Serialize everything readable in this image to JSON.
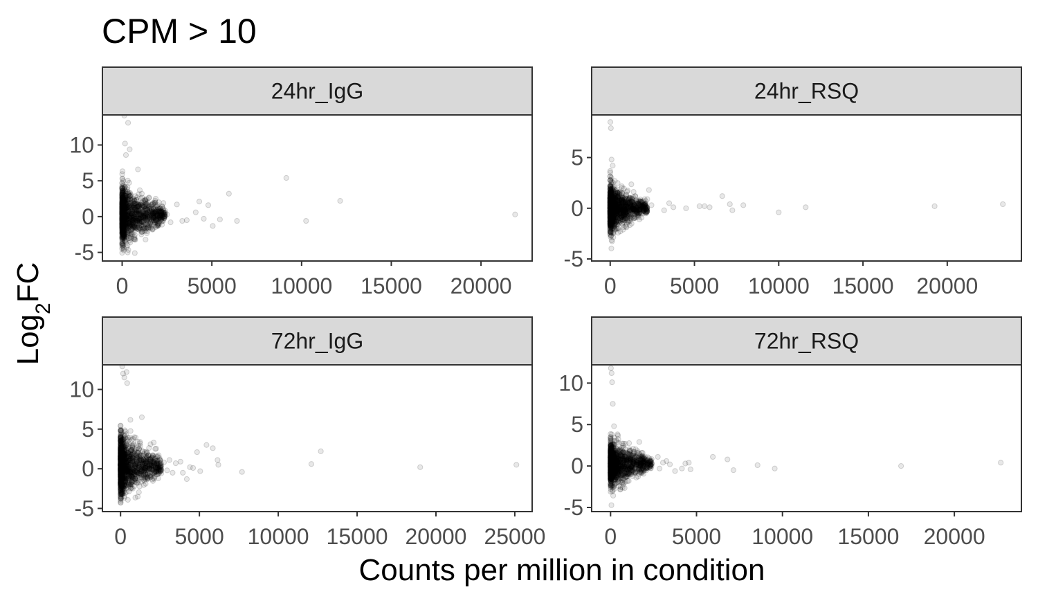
{
  "title": "CPM > 10",
  "xlabel": "Counts per million in condition",
  "ylabel_main": "Log",
  "ylabel_sub": "2",
  "ylabel_suffix": "FC",
  "chart_data": [
    {
      "type": "scatter",
      "panel": "24hr_IgG",
      "xlim": [
        -1100,
        22850
      ],
      "ylim": [
        -6.2,
        14.2
      ],
      "xticks": [
        0,
        5000,
        10000,
        15000,
        20000
      ],
      "yticks": [
        -5,
        0,
        5,
        10
      ],
      "points": [
        [
          330,
          13.1
        ],
        [
          880,
          6.6
        ],
        [
          1250,
          2.2
        ],
        [
          1500,
          1.5
        ],
        [
          1700,
          0.4
        ],
        [
          1900,
          -0.7
        ],
        [
          2050,
          2.0
        ],
        [
          2300,
          1.9
        ],
        [
          2500,
          0.3
        ],
        [
          2700,
          -0.8
        ],
        [
          3050,
          1.7
        ],
        [
          3350,
          -0.6
        ],
        [
          3600,
          -0.5
        ],
        [
          4100,
          0.6
        ],
        [
          4300,
          2.1
        ],
        [
          4550,
          -0.3
        ],
        [
          4800,
          1.6
        ],
        [
          5050,
          -1.3
        ],
        [
          5450,
          -0.4
        ],
        [
          5950,
          3.2
        ],
        [
          6400,
          -0.6
        ],
        [
          9150,
          5.4
        ],
        [
          10250,
          -0.6
        ],
        [
          12150,
          2.2
        ],
        [
          21900,
          0.3
        ],
        [
          120,
          14.1
        ],
        [
          160,
          10.2
        ],
        [
          210,
          8.6
        ],
        [
          420,
          9.4
        ]
      ],
      "dense_core": {
        "x_max": 2400,
        "y_center": 0.2,
        "y_spread": 3.2,
        "y_min": -5.3,
        "y_max": 10.6
      }
    },
    {
      "type": "scatter",
      "panel": "24hr_RSQ",
      "xlim": [
        -1100,
        24400
      ],
      "ylim": [
        -5.2,
        9.2
      ],
      "xticks": [
        0,
        5000,
        10000,
        15000,
        20000
      ],
      "yticks": [
        -5,
        0,
        5
      ],
      "points": [
        [
          2300,
          1.8
        ],
        [
          2200,
          0.9
        ],
        [
          2450,
          0.3
        ],
        [
          3200,
          -0.2
        ],
        [
          3500,
          0.5
        ],
        [
          3750,
          0.1
        ],
        [
          4500,
          0.0
        ],
        [
          5300,
          0.2
        ],
        [
          5600,
          0.2
        ],
        [
          5900,
          0.1
        ],
        [
          6650,
          1.2
        ],
        [
          7100,
          0.4
        ],
        [
          7250,
          -0.2
        ],
        [
          7900,
          0.3
        ],
        [
          10000,
          -0.4
        ],
        [
          11600,
          0.1
        ],
        [
          19250,
          0.2
        ],
        [
          23300,
          0.4
        ],
        [
          10,
          8.5
        ],
        [
          40,
          7.9
        ],
        [
          80,
          4.8
        ],
        [
          150,
          4.2
        ]
      ],
      "dense_core": {
        "x_max": 2200,
        "y_center": 0.0,
        "y_spread": 1.8,
        "y_min": -5.0,
        "y_max": 4.4
      }
    },
    {
      "type": "scatter",
      "panel": "72hr_IgG",
      "xlim": [
        -1150,
        26100
      ],
      "ylim": [
        -5.4,
        13.1
      ],
      "xticks": [
        0,
        5000,
        10000,
        15000,
        20000,
        25000
      ],
      "yticks": [
        -5,
        0,
        5,
        10
      ],
      "points": [
        [
          1350,
          6.5
        ],
        [
          1550,
          2.1
        ],
        [
          1900,
          3.1
        ],
        [
          2100,
          3.3
        ],
        [
          2200,
          2.5
        ],
        [
          2500,
          0.6
        ],
        [
          2750,
          0.8
        ],
        [
          2950,
          -0.2
        ],
        [
          3100,
          1.1
        ],
        [
          3300,
          -0.5
        ],
        [
          3500,
          0.7
        ],
        [
          3800,
          0.9
        ],
        [
          3950,
          -0.5
        ],
        [
          4200,
          -1.3
        ],
        [
          4400,
          0.2
        ],
        [
          4600,
          0.1
        ],
        [
          4850,
          2.1
        ],
        [
          5050,
          -0.3
        ],
        [
          5450,
          3.0
        ],
        [
          5850,
          2.6
        ],
        [
          6150,
          1.1
        ],
        [
          6200,
          0.5
        ],
        [
          7700,
          -0.4
        ],
        [
          12100,
          0.6
        ],
        [
          12700,
          2.2
        ],
        [
          19000,
          0.2
        ],
        [
          25100,
          0.5
        ],
        [
          110,
          12.9
        ],
        [
          160,
          12.0
        ],
        [
          240,
          11.5
        ],
        [
          380,
          12.2
        ],
        [
          420,
          10.8
        ]
      ],
      "dense_core": {
        "x_max": 2600,
        "y_center": 0.4,
        "y_spread": 3.1,
        "y_min": -4.4,
        "y_max": 10.5
      }
    },
    {
      "type": "scatter",
      "panel": "72hr_RSQ",
      "xlim": [
        -1100,
        23900
      ],
      "ylim": [
        -5.5,
        12.2
      ],
      "xticks": [
        0,
        5000,
        10000,
        15000,
        20000
      ],
      "yticks": [
        -5,
        0,
        5,
        10
      ],
      "points": [
        [
          1850,
          0.9
        ],
        [
          2350,
          0.5
        ],
        [
          2750,
          1.1
        ],
        [
          2850,
          -0.3
        ],
        [
          3050,
          0.4
        ],
        [
          3250,
          0.6
        ],
        [
          3450,
          0.2
        ],
        [
          3750,
          -0.6
        ],
        [
          4150,
          -0.3
        ],
        [
          4350,
          0.3
        ],
        [
          4550,
          0.4
        ],
        [
          4650,
          -0.4
        ],
        [
          5950,
          1.1
        ],
        [
          6800,
          0.8
        ],
        [
          7150,
          -0.5
        ],
        [
          8550,
          0.1
        ],
        [
          9550,
          -0.3
        ],
        [
          16900,
          0.0
        ],
        [
          22700,
          0.4
        ],
        [
          20,
          11.8
        ],
        [
          60,
          11.2
        ],
        [
          90,
          10.1
        ],
        [
          130,
          7.5
        ],
        [
          200,
          4.8
        ]
      ],
      "dense_core": {
        "x_max": 2400,
        "y_center": 0.2,
        "y_spread": 2.2,
        "y_min": -5.0,
        "y_max": 7.8
      }
    }
  ]
}
